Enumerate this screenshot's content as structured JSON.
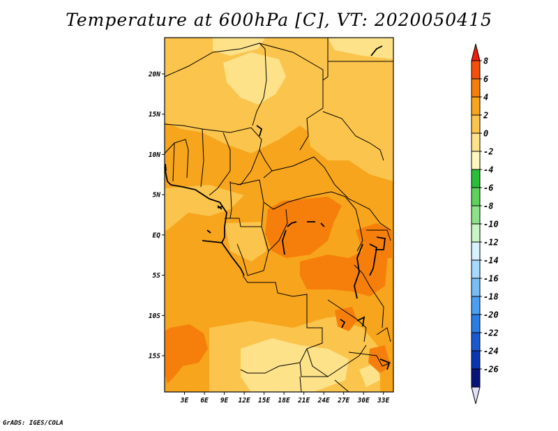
{
  "title": "Temperature at 600hPa [C], VT: 2020050415",
  "footer": "GrADS: IGES/COLA",
  "map": {
    "variable": "Temperature at 600hPa",
    "units": "C",
    "valid_time": "2020050415",
    "lon_range": [
      0,
      34.5
    ],
    "lat_range": [
      -19.5,
      24.5
    ],
    "lat_ticks": [
      {
        "value": 20,
        "label": "20N"
      },
      {
        "value": 15,
        "label": "15N"
      },
      {
        "value": 10,
        "label": "10N"
      },
      {
        "value": 5,
        "label": "5N"
      },
      {
        "value": 0,
        "label": "EQ"
      },
      {
        "value": -5,
        "label": "5S"
      },
      {
        "value": -10,
        "label": "10S"
      },
      {
        "value": -15,
        "label": "15S"
      }
    ],
    "lon_ticks": [
      {
        "value": 3,
        "label": "3E"
      },
      {
        "value": 6,
        "label": "6E"
      },
      {
        "value": 9,
        "label": "9E"
      },
      {
        "value": 12,
        "label": "12E"
      },
      {
        "value": 15,
        "label": "15E"
      },
      {
        "value": 18,
        "label": "18E"
      },
      {
        "value": 21,
        "label": "21E"
      },
      {
        "value": 24,
        "label": "24E"
      },
      {
        "value": 27,
        "label": "27E"
      },
      {
        "value": 30,
        "label": "30E"
      },
      {
        "value": 33,
        "label": "33E"
      }
    ]
  },
  "colorbar": {
    "labels": [
      "8",
      "6",
      "4",
      "2",
      "0",
      "-2",
      "-4",
      "-6",
      "-8",
      "-10",
      "-12",
      "-14",
      "-16",
      "-18",
      "-20",
      "-22",
      "-24",
      "-26"
    ],
    "colors": [
      "#f01e0a",
      "#f5500a",
      "#f57f0a",
      "#f7a51c",
      "#fbc44c",
      "#fde28a",
      "#fff7be",
      "#28c039",
      "#5ed25b",
      "#8ce288",
      "#c8f5c5",
      "#d9f1ff",
      "#a6d9ff",
      "#78bef5",
      "#4a9ff0",
      "#2a7ce6",
      "#1a58d2",
      "#0a36b4",
      "#0a1478",
      "#e0e0f8"
    ]
  },
  "field_colors": {
    "pale": "#fde28a",
    "light": "#fbc44c",
    "mid": "#f7a51c",
    "warm": "#f57f0a",
    "hot": "#f5500a"
  },
  "features": [
    "country-borders",
    "coastline",
    "lakes"
  ]
}
